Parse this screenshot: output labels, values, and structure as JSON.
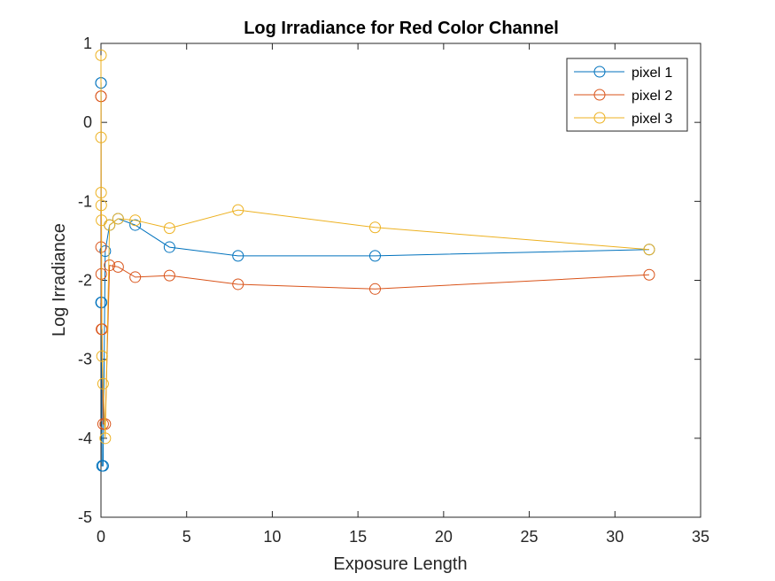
{
  "chart_data": {
    "type": "line",
    "title": "Log Irradiance for Red Color Channel",
    "xlabel": "Exposure Length",
    "ylabel": "Log Irradiance",
    "xlim": [
      0,
      35
    ],
    "ylim": [
      -5,
      1
    ],
    "xticks": [
      "0",
      "5",
      "10",
      "15",
      "20",
      "25",
      "30",
      "35"
    ],
    "yticks": [
      "-5",
      "-4",
      "-3",
      "-2",
      "-1",
      "0",
      "1"
    ],
    "grid": false,
    "legend_position": "top-right",
    "marker": "circle",
    "series": [
      {
        "name": "pixel 1",
        "color": "#0072BD",
        "x": [
          0,
          0.0039,
          0.0078,
          0.0156,
          0.0313,
          0.0625,
          0.125,
          0.25,
          0.5,
          1,
          2,
          4,
          8,
          16,
          32
        ],
        "y": [
          0.5,
          0.5,
          -2.28,
          -2.28,
          -2.28,
          -4.35,
          -4.35,
          -1.63,
          -1.3,
          -1.22,
          -1.3,
          -1.58,
          -1.69,
          -1.69,
          -1.61
        ]
      },
      {
        "name": "pixel 2",
        "color": "#D95319",
        "x": [
          0,
          0.0039,
          0.0078,
          0.0156,
          0.0313,
          0.0625,
          0.125,
          0.25,
          0.5,
          1,
          2,
          4,
          8,
          16,
          32
        ],
        "y": [
          0.33,
          0.33,
          -1.58,
          -1.92,
          -2.62,
          -2.62,
          -3.82,
          -3.82,
          -1.81,
          -1.83,
          -1.96,
          -1.94,
          -2.05,
          -2.11,
          -1.93
        ]
      },
      {
        "name": "pixel 3",
        "color": "#EDB120",
        "x": [
          0,
          0.0039,
          0.0078,
          0.0156,
          0.0313,
          0.0625,
          0.125,
          0.25,
          0.5,
          1,
          2,
          4,
          8,
          16,
          32
        ],
        "y": [
          0.85,
          -0.19,
          -0.89,
          -1.05,
          -1.24,
          -2.96,
          -3.31,
          -4.0,
          -1.3,
          -1.22,
          -1.24,
          -1.34,
          -1.11,
          -1.33,
          -1.61
        ]
      }
    ]
  }
}
